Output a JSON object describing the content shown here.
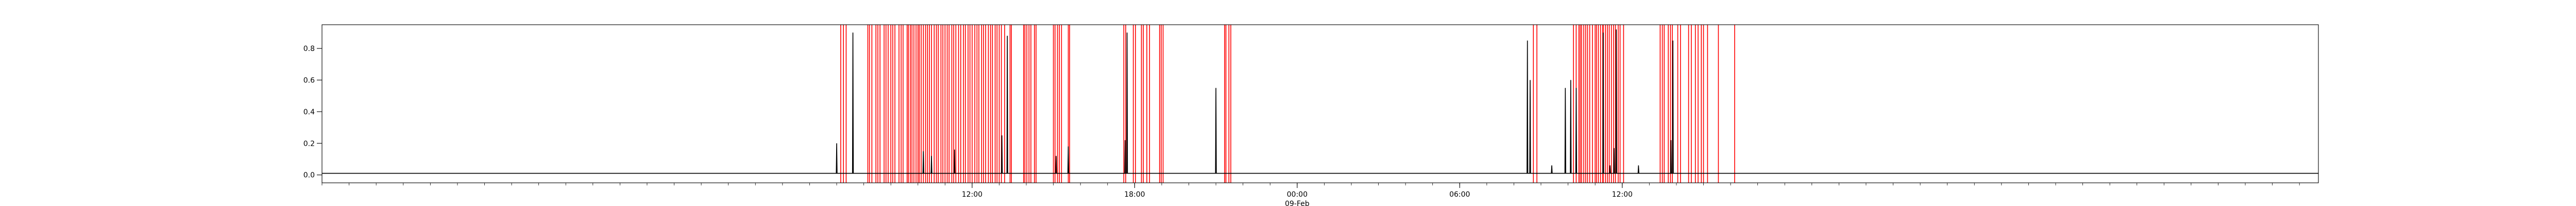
{
  "chart_data": {
    "type": "line",
    "title": "",
    "xlabel": "",
    "ylabel": "",
    "x_range_hours": [
      -12.0,
      61.7
    ],
    "ylim": [
      -0.05,
      0.95
    ],
    "yticks": [
      0.0,
      0.2,
      0.4,
      0.6,
      0.8
    ],
    "ytick_labels": [
      "0.0",
      "0.2",
      "0.4",
      "0.6",
      "0.8"
    ],
    "xticks": [
      {
        "hour": 12.0,
        "label": "12:00",
        "sublabel": ""
      },
      {
        "hour": 18.0,
        "label": "18:00",
        "sublabel": ""
      },
      {
        "hour": 24.0,
        "label": "00:00",
        "sublabel": "09-Feb"
      },
      {
        "hour": 30.0,
        "label": "06:00",
        "sublabel": ""
      },
      {
        "hour": 36.0,
        "label": "12:00",
        "sublabel": ""
      }
    ],
    "minor_tick_step_hours": 1,
    "grid": false,
    "legend": "none",
    "baseline": 0.01,
    "series": [
      {
        "color": "#000000",
        "spikes": [
          [
            7.6,
            0.9
          ],
          [
            7.0,
            0.2
          ],
          [
            10.2,
            0.15
          ],
          [
            10.5,
            0.12
          ],
          [
            11.35,
            0.16
          ],
          [
            13.1,
            0.25
          ],
          [
            13.3,
            0.88
          ],
          [
            15.1,
            0.12
          ],
          [
            15.55,
            0.18
          ],
          [
            17.65,
            0.22
          ],
          [
            17.72,
            0.9
          ],
          [
            21.0,
            0.55
          ],
          [
            32.5,
            0.85
          ],
          [
            32.6,
            0.6
          ],
          [
            33.4,
            0.06
          ],
          [
            33.9,
            0.55
          ],
          [
            34.1,
            0.6
          ],
          [
            34.3,
            0.55
          ],
          [
            35.3,
            0.9
          ],
          [
            35.55,
            0.06
          ],
          [
            35.7,
            0.17
          ],
          [
            35.78,
            0.92
          ],
          [
            36.6,
            0.06
          ],
          [
            37.8,
            0.22
          ],
          [
            37.87,
            0.85
          ]
        ]
      }
    ],
    "vlines": {
      "color": "#ff0000",
      "hours": [
        7.15,
        7.25,
        7.35,
        8.15,
        8.21,
        8.3,
        8.45,
        8.52,
        8.6,
        8.75,
        8.82,
        8.9,
        9.0,
        9.07,
        9.15,
        9.3,
        9.38,
        9.45,
        9.6,
        9.65,
        9.72,
        9.78,
        9.85,
        9.93,
        10.0,
        10.05,
        10.12,
        10.2,
        10.28,
        10.35,
        10.42,
        10.5,
        10.6,
        10.68,
        10.75,
        10.85,
        10.92,
        11.0,
        11.08,
        11.15,
        11.25,
        11.32,
        11.4,
        11.5,
        11.58,
        11.68,
        11.75,
        11.85,
        11.92,
        12.0,
        12.1,
        12.18,
        12.25,
        12.35,
        12.42,
        12.5,
        12.6,
        12.68,
        12.75,
        12.85,
        12.92,
        13.0,
        13.08,
        13.2,
        13.4,
        13.45,
        13.9,
        13.95,
        14.02,
        14.1,
        14.17,
        14.3,
        14.36,
        15.0,
        15.06,
        15.15,
        15.22,
        15.3,
        15.55,
        15.6,
        17.6,
        17.67,
        17.95,
        18.03,
        18.25,
        18.32,
        18.45,
        18.55,
        18.92,
        18.98,
        19.05,
        21.32,
        21.37,
        21.48,
        21.55,
        32.72,
        32.85,
        34.2,
        34.3,
        34.4,
        34.45,
        34.5,
        34.58,
        34.65,
        34.72,
        34.8,
        34.9,
        35.0,
        35.05,
        35.12,
        35.2,
        35.28,
        35.3,
        35.38,
        35.45,
        35.52,
        35.6,
        35.68,
        35.75,
        35.85,
        35.92,
        36.05,
        37.4,
        37.48,
        37.55,
        37.7,
        37.78,
        37.85,
        38.05,
        38.15,
        38.45,
        38.55,
        38.7,
        38.8,
        38.92,
        39.0,
        39.15,
        39.55,
        40.15
      ]
    }
  }
}
